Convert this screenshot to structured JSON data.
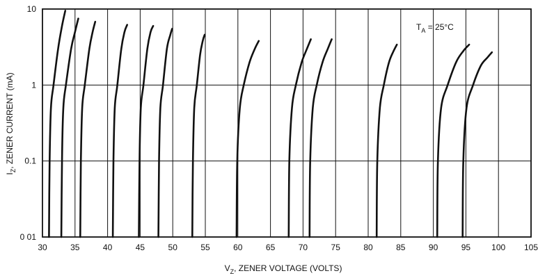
{
  "chart_data": {
    "type": "line",
    "title": "",
    "xlabel": {
      "main": "V",
      "sub": "Z",
      "rest": ", ZENER VOLTAGE (VOLTS)"
    },
    "ylabel": {
      "main": "I",
      "sub": "Z",
      "rest": ", ZENER CURRENT (mA)"
    },
    "xlim": [
      30,
      105
    ],
    "ylim": [
      0.01,
      10
    ],
    "y_scale": "log",
    "grid": true,
    "x_ticks": [
      30,
      35,
      40,
      45,
      50,
      55,
      60,
      65,
      70,
      75,
      80,
      85,
      90,
      95,
      100,
      105
    ],
    "x_tick_labels": [
      "30",
      "35",
      "40",
      "45",
      "50",
      "55",
      "60",
      "65",
      "70",
      "75",
      "80",
      "85",
      "90",
      "95",
      "100",
      "105"
    ],
    "y_ticks": [
      0.01,
      0.1,
      1,
      10
    ],
    "y_tick_labels": [
      "0 01",
      "0.1",
      "1",
      "10"
    ],
    "annotation": {
      "main": "T",
      "sub": "A",
      "rest": " = 25°C"
    },
    "line_color": "#111111",
    "grid_color": "#111111",
    "series": [
      {
        "x": [
          31.0,
          31.1,
          31.3,
          31.7,
          32.4,
          33.0,
          33.5
        ],
        "y": [
          0.01,
          0.1,
          0.5,
          1,
          3,
          6,
          9.5
        ]
      },
      {
        "x": [
          32.9,
          33.0,
          33.2,
          33.6,
          34.4,
          35.0,
          35.5
        ],
        "y": [
          0.01,
          0.1,
          0.5,
          1,
          3,
          5,
          7.5
        ]
      },
      {
        "x": [
          35.8,
          35.9,
          36.1,
          36.5,
          37.2,
          37.7,
          38.1
        ],
        "y": [
          0.01,
          0.1,
          0.5,
          1,
          3,
          5,
          6.8
        ]
      },
      {
        "x": [
          40.8,
          40.9,
          41.1,
          41.5,
          42.1,
          42.6,
          43.0
        ],
        "y": [
          0.01,
          0.1,
          0.5,
          1,
          3,
          5,
          6.2
        ]
      },
      {
        "x": [
          44.8,
          44.9,
          45.1,
          45.5,
          46.1,
          46.6,
          47.0
        ],
        "y": [
          0.01,
          0.1,
          0.5,
          1,
          3,
          5,
          6.0
        ]
      },
      {
        "x": [
          47.8,
          47.9,
          48.1,
          48.5,
          49.1,
          49.6,
          49.9
        ],
        "y": [
          0.01,
          0.1,
          0.5,
          1,
          3,
          4.5,
          5.5
        ]
      },
      {
        "x": [
          53.0,
          53.1,
          53.3,
          53.7,
          54.2,
          54.6,
          54.9
        ],
        "y": [
          0.01,
          0.1,
          0.5,
          1,
          2.5,
          3.8,
          4.6
        ]
      },
      {
        "x": [
          59.8,
          59.9,
          60.3,
          60.9,
          61.8,
          62.6,
          63.2
        ],
        "y": [
          0.01,
          0.1,
          0.5,
          1,
          2,
          3,
          3.8
        ]
      },
      {
        "x": [
          67.8,
          67.9,
          68.3,
          68.9,
          69.8,
          70.6,
          71.2
        ],
        "y": [
          0.01,
          0.1,
          0.5,
          1,
          2,
          3,
          4.0
        ]
      },
      {
        "x": [
          71.0,
          71.1,
          71.5,
          72.1,
          73.0,
          73.8,
          74.4
        ],
        "y": [
          0.01,
          0.1,
          0.5,
          1,
          2,
          3,
          4.0
        ]
      },
      {
        "x": [
          81.3,
          81.4,
          81.8,
          82.4,
          83.2,
          83.9,
          84.4
        ],
        "y": [
          0.01,
          0.1,
          0.5,
          1,
          2,
          2.8,
          3.4
        ]
      },
      {
        "x": [
          90.6,
          90.7,
          91.2,
          92.2,
          93.5,
          94.6,
          95.5
        ],
        "y": [
          0.01,
          0.1,
          0.5,
          1,
          2,
          2.8,
          3.4
        ]
      },
      {
        "x": [
          94.5,
          94.6,
          95.1,
          96.1,
          97.3,
          98.3,
          99.0
        ],
        "y": [
          0.01,
          0.1,
          0.5,
          1,
          1.8,
          2.3,
          2.7
        ]
      }
    ]
  }
}
